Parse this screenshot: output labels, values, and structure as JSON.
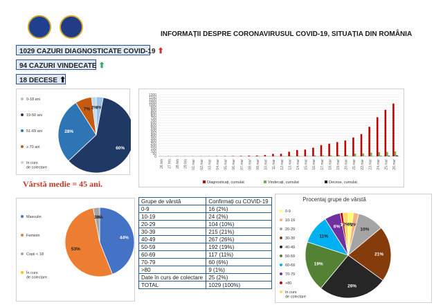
{
  "title": "INFORMAȚII DESPRE CORONAVIRUSUL COVID-19, SITUAȚIA DIN ROMÂNIA",
  "stats": {
    "diagnosed": {
      "label": "1029 CAZURI DIAGNOSTICATE COVID-19",
      "color": "#d32f2f",
      "icon": "arrow-up-icon"
    },
    "recovered": {
      "label": "94 CAZURI VINDECATE",
      "color": "#27ae60",
      "icon": "arrow-up-icon"
    },
    "deaths": {
      "label": "18 DECESE",
      "color": "#111111",
      "icon": "arrow-up-icon"
    }
  },
  "median_age": "Vârstă medie = 45 ani.",
  "chart_data": [
    {
      "type": "pie",
      "categories": [
        "0-18 ani",
        "19-50 ani",
        "51-69 ani",
        "≥ 70 ani",
        "în curs de colectare"
      ],
      "values": [
        3,
        60,
        28,
        7,
        2
      ],
      "labels": [
        "3%",
        "60%",
        "28%",
        "7%",
        "2%"
      ],
      "colors": [
        "#9dc3e6",
        "#203864",
        "#2e75b6",
        "#c55a11",
        "#bdd7ee"
      ],
      "legend": "left"
    },
    {
      "type": "bar",
      "categories": [
        "26.feb",
        "27.feb",
        "28.feb",
        "29.feb",
        "01.mar",
        "02.mar",
        "03.mar",
        "04.mar",
        "05.mar",
        "06.mar",
        "07.mar",
        "08.mar",
        "09.mar",
        "10.mar",
        "11.mar",
        "12.mar",
        "13.mar",
        "14.mar",
        "15.mar",
        "16.mar",
        "17.mar",
        "18.mar",
        "19.mar",
        "20.mar",
        "21.mar",
        "22.mar",
        "23.mar",
        "24.mar",
        "25.mar",
        "26.mar"
      ],
      "series": [
        {
          "name": "Diagnosticați, cumulat",
          "color": "#c00000",
          "values": [
            1,
            3,
            3,
            3,
            3,
            3,
            3,
            4,
            6,
            7,
            9,
            13,
            15,
            25,
            47,
            49,
            89,
            123,
            131,
            168,
            217,
            246,
            277,
            308,
            367,
            433,
            576,
            762,
            906,
            1029
          ]
        },
        {
          "name": "Vindecați, cumulat",
          "color": "#70ad47",
          "values": [
            0,
            0,
            0,
            0,
            0,
            0,
            0,
            0,
            1,
            3,
            3,
            3,
            5,
            5,
            6,
            6,
            9,
            9,
            9,
            17,
            19,
            19,
            25,
            25,
            52,
            57,
            73,
            79,
            86,
            94
          ]
        },
        {
          "name": "Decese, cumulat",
          "color": "#222222",
          "values": [
            0,
            0,
            0,
            0,
            0,
            0,
            0,
            0,
            0,
            0,
            0,
            0,
            0,
            0,
            0,
            0,
            0,
            0,
            0,
            0,
            0,
            0,
            0,
            0,
            0,
            2,
            2,
            7,
            11,
            18
          ]
        }
      ],
      "ylim": [
        0,
        1200
      ],
      "yticks": [
        0,
        50,
        100,
        150,
        200,
        250,
        300,
        350,
        400,
        450,
        500,
        550,
        600,
        650,
        700,
        750,
        800,
        850,
        900,
        950,
        1000,
        1050,
        1100,
        1150,
        1200
      ],
      "grid": true,
      "legend": "bottom"
    },
    {
      "type": "pie",
      "categories": [
        "Masculin",
        "Feminin",
        "Copii < 18",
        "În curs de colectare"
      ],
      "values": [
        44,
        53,
        3,
        0
      ],
      "labels": [
        "44%",
        "53%",
        "3%",
        "0%"
      ],
      "colors": [
        "#4472c4",
        "#ed7d31",
        "#a5a5a5",
        "#ffc000"
      ],
      "legend": "left"
    },
    {
      "type": "table",
      "columns": [
        "Grupe de vârstă",
        "Confirmați cu COVID-19"
      ],
      "rows": [
        [
          "0-9",
          "16 (2%)"
        ],
        [
          "10-19",
          "24 (2%)"
        ],
        [
          "20-29",
          "104 (10%)"
        ],
        [
          "30-39",
          "215 (21%)"
        ],
        [
          "40-49",
          "267 (26%)"
        ],
        [
          "50-59",
          "192 (19%)"
        ],
        [
          "60-69",
          "117 (11%)"
        ],
        [
          "70-79",
          "60 (6%)"
        ],
        [
          ">80",
          "9 (1%)"
        ],
        [
          "Date în curs de colectare",
          "25 (2%)"
        ],
        [
          "TOTAL",
          "1029 (100%)"
        ]
      ]
    },
    {
      "type": "pie",
      "title": "Procentaj grupe de vârstă",
      "categories": [
        "0-9",
        "10-19",
        "20-29",
        "30-39",
        "40-49",
        "50-59",
        "60-69",
        "70-79",
        ">80",
        "în curs de colectare"
      ],
      "values": [
        2,
        2,
        10,
        21,
        26,
        19,
        11,
        6,
        1,
        2
      ],
      "labels": [
        "2%",
        "2%",
        "10%",
        "21%",
        "26%",
        "19%",
        "11%",
        "6%",
        "1%",
        "2%"
      ],
      "colors": [
        "#ffff66",
        "#f4b183",
        "#a5a5a5",
        "#843c0c",
        "#262626",
        "#548235",
        "#00b0f0",
        "#7030a0",
        "#c00000",
        "#ffd966"
      ],
      "legend": "right"
    }
  ]
}
